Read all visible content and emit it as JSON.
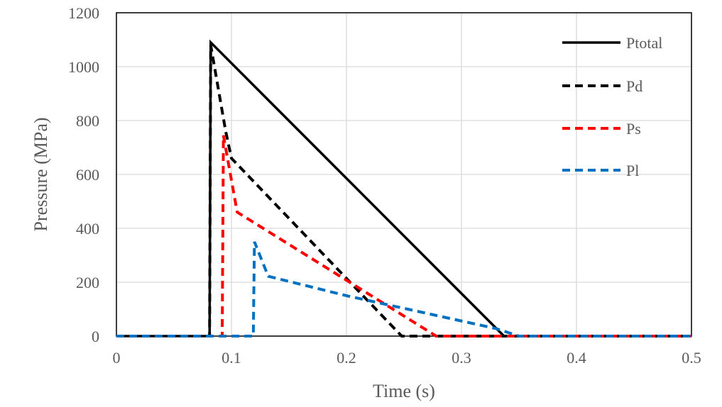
{
  "chart_data": {
    "type": "line",
    "xlabel": "Time (s)",
    "ylabel": "Pressure (MPa)",
    "xlim": [
      0,
      0.5
    ],
    "ylim": [
      0,
      1200
    ],
    "xticks": [
      0,
      0.1,
      0.2,
      0.3,
      0.4,
      0.5
    ],
    "xtick_labels": [
      "0",
      "0.1",
      "0.2",
      "0.3",
      "0.4",
      "0.5"
    ],
    "yticks": [
      0,
      200,
      400,
      600,
      800,
      1000,
      1200
    ],
    "ytick_labels": [
      "0",
      "200",
      "400",
      "600",
      "800",
      "1000",
      "1200"
    ],
    "grid": true,
    "legend_position": "top-right",
    "series": [
      {
        "name": "Ptotal",
        "color": "#000000",
        "style": "solid",
        "points": [
          [
            0,
            0
          ],
          [
            0.081,
            0
          ],
          [
            0.082,
            1090
          ],
          [
            0.337,
            0
          ],
          [
            0.5,
            0
          ]
        ]
      },
      {
        "name": "Pd",
        "color": "#000000",
        "style": "dashed",
        "points": [
          [
            0,
            0
          ],
          [
            0.081,
            0
          ],
          [
            0.082,
            1080
          ],
          [
            0.095,
            760
          ],
          [
            0.1,
            660
          ],
          [
            0.248,
            0
          ],
          [
            0.5,
            0
          ]
        ]
      },
      {
        "name": "Ps",
        "color": "#ff0000",
        "style": "dashed",
        "points": [
          [
            0,
            0
          ],
          [
            0.092,
            0
          ],
          [
            0.093,
            745
          ],
          [
            0.105,
            460
          ],
          [
            0.278,
            0
          ],
          [
            0.5,
            0
          ]
        ]
      },
      {
        "name": "Pl",
        "color": "#0070c0",
        "style": "dashed",
        "points": [
          [
            0,
            0
          ],
          [
            0.119,
            0
          ],
          [
            0.12,
            350
          ],
          [
            0.132,
            222
          ],
          [
            0.2,
            150
          ],
          [
            0.33,
            28
          ],
          [
            0.35,
            0
          ],
          [
            0.5,
            0
          ]
        ]
      }
    ]
  }
}
